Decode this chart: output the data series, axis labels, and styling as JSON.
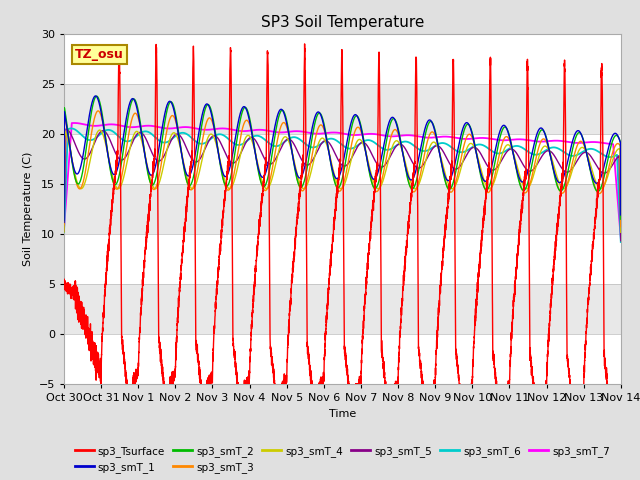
{
  "title": "SP3 Soil Temperature",
  "xlabel": "Time",
  "ylabel": "Soil Temperature (C)",
  "ylim": [
    -5,
    30
  ],
  "bg_color": "#e0e0e0",
  "plot_bg": "#e8e8e8",
  "annotation_text": "TZ_osu",
  "annotation_bg": "#ffff99",
  "annotation_border": "#aa8800",
  "xtick_labels": [
    "Oct 30",
    "Oct 31",
    "Nov 1",
    "Nov 2",
    "Nov 3",
    "Nov 4",
    "Nov 5",
    "Nov 6",
    "Nov 7",
    "Nov 8",
    "Nov 9",
    "Nov 10",
    "Nov 11",
    "Nov 12",
    "Nov 13",
    "Nov 14"
  ],
  "series": [
    {
      "name": "sp3_Tsurface",
      "color": "#ff0000"
    },
    {
      "name": "sp3_smT_1",
      "color": "#0000cc"
    },
    {
      "name": "sp3_smT_2",
      "color": "#00bb00"
    },
    {
      "name": "sp3_smT_3",
      "color": "#ff8800"
    },
    {
      "name": "sp3_smT_4",
      "color": "#cccc00"
    },
    {
      "name": "sp3_smT_5",
      "color": "#880088"
    },
    {
      "name": "sp3_smT_6",
      "color": "#00cccc"
    },
    {
      "name": "sp3_smT_7",
      "color": "#ff00ff"
    }
  ]
}
